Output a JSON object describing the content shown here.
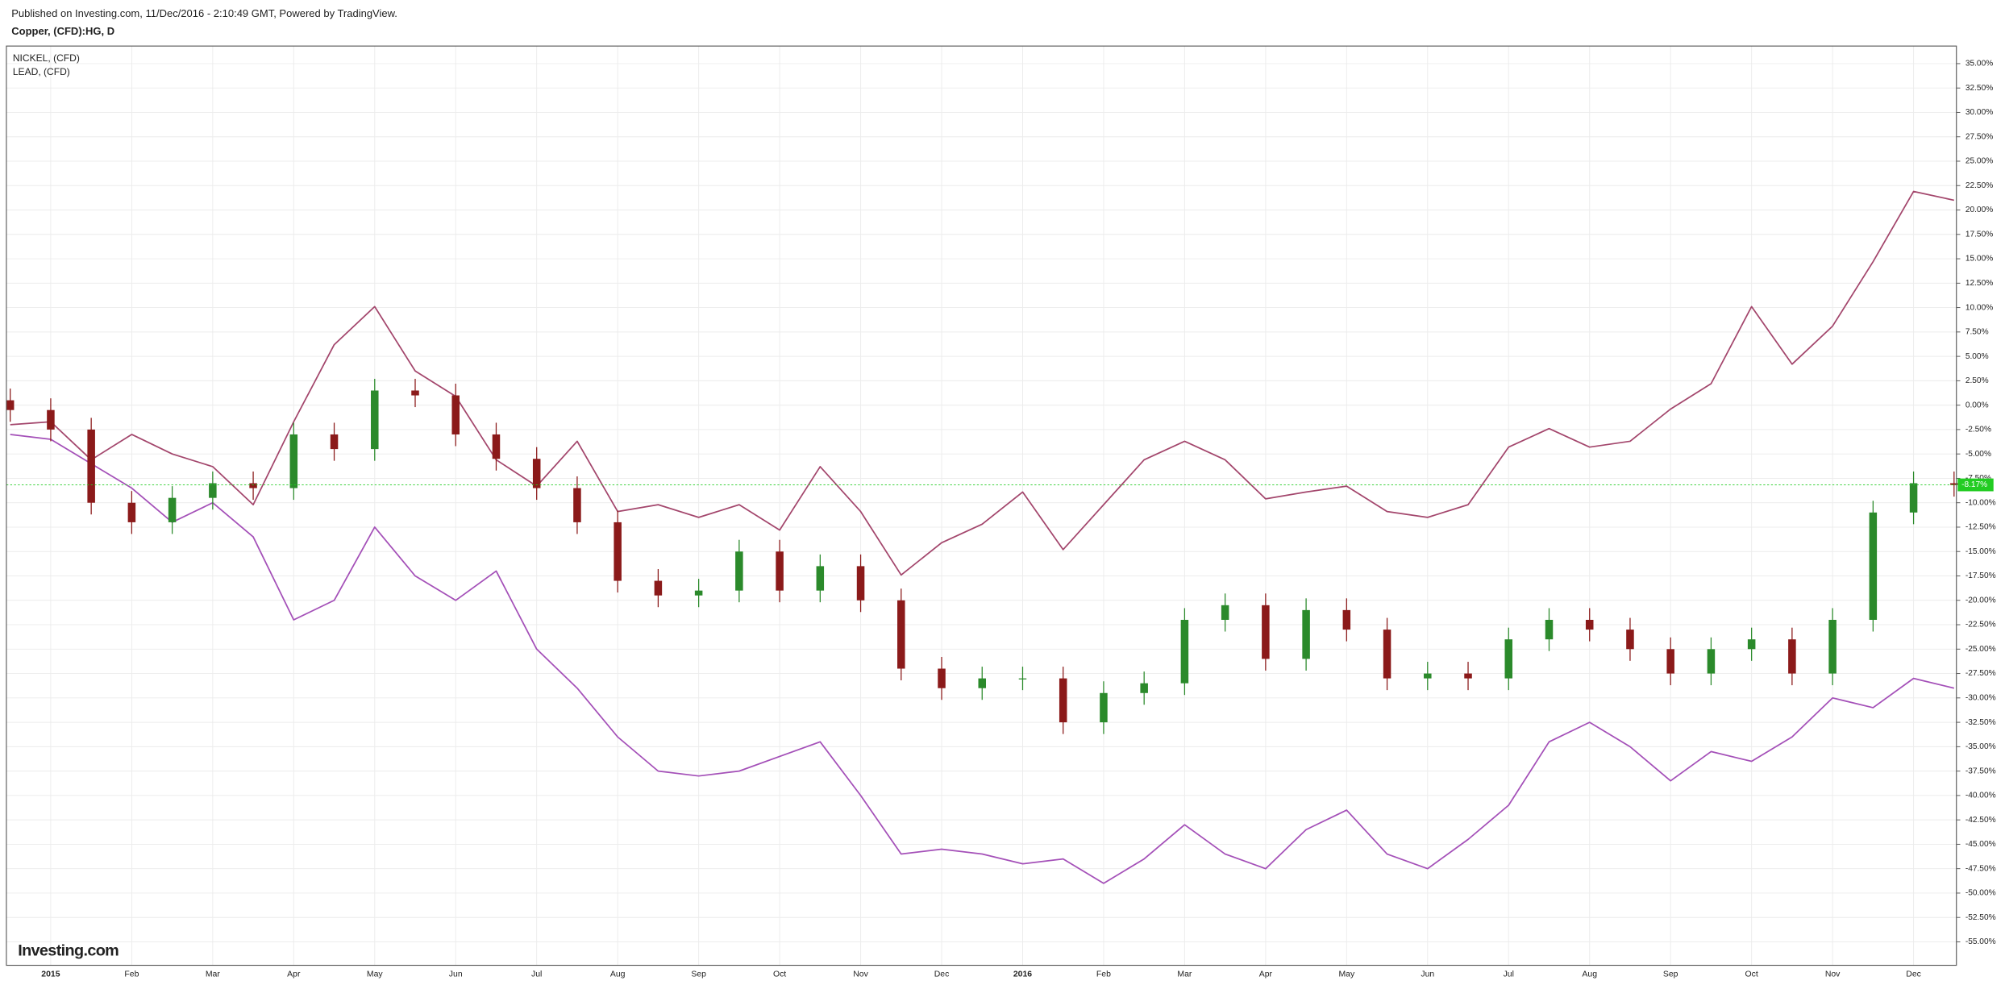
{
  "chart_data": {
    "type": "candlestick",
    "header": "Published on Investing.com, 11/Dec/2016 - 2:10:49 GMT, Powered by TradingView.",
    "title": "Copper, (CFD):HG, D",
    "watermark": "Investing.com",
    "categories": [
      null,
      "2015",
      null,
      "Feb",
      null,
      "Mar",
      null,
      "Apr",
      null,
      "May",
      null,
      "Jun",
      null,
      "Jul",
      null,
      "Aug",
      null,
      "Sep",
      null,
      "Oct",
      null,
      "Nov",
      null,
      "Dec",
      null,
      "2016",
      null,
      "Feb",
      null,
      "Mar",
      null,
      "Apr",
      null,
      "May",
      null,
      "Jun",
      null,
      "Jul",
      null,
      "Aug",
      null,
      "Sep",
      null,
      "Oct",
      null,
      "Nov",
      null,
      "Dec",
      null
    ],
    "open": [
      0.5,
      -0.5,
      -2.5,
      -10,
      -12,
      -9.5,
      -8,
      -8.5,
      -3,
      -4.5,
      1.5,
      1,
      -3,
      -5.5,
      -8.5,
      -12,
      -18,
      -19.5,
      -19,
      -15,
      -19,
      -16.5,
      -20,
      -27,
      -29,
      -28,
      -28,
      -32.5,
      -29.5,
      -28.5,
      -22,
      -20.5,
      -26,
      -21,
      -23,
      -28,
      -27.5,
      -28,
      -24,
      -22,
      -23,
      -25,
      -27.5,
      -25,
      -24,
      -27.5,
      -22,
      -11,
      -8
    ],
    "high": [
      1.7,
      0.7,
      -1.3,
      -8.8,
      -8.3,
      -6.8,
      -6.8,
      -1.8,
      -1.8,
      2.7,
      2.7,
      2.2,
      -1.8,
      -4.3,
      -7.3,
      -10.8,
      -16.8,
      -17.8,
      -13.8,
      -13.8,
      -15.3,
      -15.3,
      -18.8,
      -25.8,
      -26.8,
      -26.8,
      -26.8,
      -28.3,
      -27.3,
      -20.8,
      -19.3,
      -19.3,
      -19.8,
      -19.8,
      -21.8,
      -26.3,
      -26.3,
      -22.8,
      -20.8,
      -20.8,
      -21.8,
      -23.8,
      -23.8,
      -22.8,
      -22.8,
      -20.8,
      -9.8,
      -6.8,
      -6.8
    ],
    "low": [
      -1.7,
      -3.7,
      -11.2,
      -13.2,
      -13.2,
      -10.7,
      -9.7,
      -9.7,
      -5.7,
      -5.7,
      -0.2,
      -4.2,
      -6.7,
      -9.7,
      -13.2,
      -19.2,
      -20.7,
      -20.7,
      -20.2,
      -20.2,
      -20.2,
      -21.2,
      -28.2,
      -30.2,
      -30.2,
      -29.2,
      -33.7,
      -33.7,
      -30.7,
      -29.7,
      -23.2,
      -27.2,
      -27.2,
      -24.2,
      -29.2,
      -29.2,
      -29.2,
      -29.2,
      -25.2,
      -24.2,
      -26.2,
      -28.7,
      -28.7,
      -26.2,
      -28.7,
      -28.7,
      -23.2,
      -12.2,
      -9.37
    ],
    "close": [
      -0.5,
      -2.5,
      -10,
      -12,
      -9.5,
      -8,
      -8.5,
      -3,
      -4.5,
      1.5,
      1,
      -3,
      -5.5,
      -8.5,
      -12,
      -18,
      -19.5,
      -19,
      -15,
      -19,
      -16.5,
      -20,
      -27,
      -29,
      -28,
      -28,
      -32.5,
      -29.5,
      -28.5,
      -22,
      -20.5,
      -26,
      -21,
      -23,
      -28,
      -27.5,
      -28,
      -24,
      -22,
      -23,
      -25,
      -27.5,
      -25,
      -24,
      -27.5,
      -22,
      -11,
      -8,
      -8.17
    ],
    "up_color": "#2b8a2b",
    "down_color": "#8b1a1a",
    "overlays": [
      {
        "name": "NICKEL,  (CFD)",
        "color": "#a3466c",
        "values": [
          -2,
          -1.7,
          -5.6,
          -3,
          -5,
          -6.3,
          -10.2,
          -1.7,
          6.2,
          10.1,
          3.5,
          0.9,
          -5.6,
          -8.3,
          -3.7,
          -10.9,
          -10.2,
          -11.5,
          -10.2,
          -12.8,
          -6.3,
          -10.9,
          -17.4,
          -14.1,
          -12.2,
          -8.9,
          -14.8,
          -10.2,
          -5.6,
          -3.7,
          -5.6,
          -9.6,
          -8.9,
          -8.3,
          -10.9,
          -11.5,
          -10.2,
          -4.3,
          -2.4,
          -4.3,
          -3.7,
          -0.4,
          2.2,
          10.1,
          4.2,
          8.1,
          14.7,
          21.9,
          21
        ]
      },
      {
        "name": "LEAD,  (CFD)",
        "color": "#a450b8",
        "values": [
          -3,
          -3.5,
          -6,
          -8.5,
          -12,
          -10,
          -13.5,
          -22,
          -20,
          -12.5,
          -17.5,
          -20,
          -17,
          -25,
          -29,
          -34,
          -37.5,
          -38,
          -37.5,
          -36,
          -34.5,
          -40,
          -46,
          -45.5,
          -46,
          -47,
          -46.5,
          -49,
          -46.5,
          -43,
          -46,
          -47.5,
          -43.5,
          -41.5,
          -46,
          -47.5,
          -44.5,
          -41,
          -34.5,
          -32.5,
          -35,
          -38.5,
          -35.5,
          -36.5,
          -34,
          -30,
          -31,
          -28,
          -29
        ]
      }
    ],
    "last_value": -8.17,
    "last_value_label": "-8.17%",
    "last_color": "#22cc22",
    "ylim": [
      -57.4,
      36.8
    ],
    "yticks": [
      {
        "value": 35,
        "label": "35.00%"
      },
      {
        "value": 32.5,
        "label": "32.50%"
      },
      {
        "value": 30,
        "label": "30.00%"
      },
      {
        "value": 27.5,
        "label": "27.50%"
      },
      {
        "value": 25,
        "label": "25.00%"
      },
      {
        "value": 22.5,
        "label": "22.50%"
      },
      {
        "value": 20,
        "label": "20.00%"
      },
      {
        "value": 17.5,
        "label": "17.50%"
      },
      {
        "value": 15,
        "label": "15.00%"
      },
      {
        "value": 12.5,
        "label": "12.50%"
      },
      {
        "value": 10,
        "label": "10.00%"
      },
      {
        "value": 7.5,
        "label": "7.50%"
      },
      {
        "value": 5,
        "label": "5.00%"
      },
      {
        "value": 2.5,
        "label": "2.50%"
      },
      {
        "value": 0,
        "label": "0.00%"
      },
      {
        "value": -2.5,
        "label": "-2.50%"
      },
      {
        "value": -5,
        "label": "-5.00%"
      },
      {
        "value": -7.5,
        "label": "-7.50%"
      },
      {
        "value": -10,
        "label": "-10.00%"
      },
      {
        "value": -12.5,
        "label": "-12.50%"
      },
      {
        "value": -15,
        "label": "-15.00%"
      },
      {
        "value": -17.5,
        "label": "-17.50%"
      },
      {
        "value": -20,
        "label": "-20.00%"
      },
      {
        "value": -22.5,
        "label": "-22.50%"
      },
      {
        "value": -25,
        "label": "-25.00%"
      },
      {
        "value": -27.5,
        "label": "-27.50%"
      },
      {
        "value": -30,
        "label": "-30.00%"
      },
      {
        "value": -32.5,
        "label": "-32.50%"
      },
      {
        "value": -35,
        "label": "-35.00%"
      },
      {
        "value": -37.5,
        "label": "-37.50%"
      },
      {
        "value": -40,
        "label": "-40.00%"
      },
      {
        "value": -42.5,
        "label": "-42.50%"
      },
      {
        "value": -45,
        "label": "-45.00%"
      },
      {
        "value": -47.5,
        "label": "-47.50%"
      },
      {
        "value": -50,
        "label": "-50.00%"
      },
      {
        "value": -52.5,
        "label": "-52.50%"
      },
      {
        "value": -55,
        "label": "-55.00%"
      }
    ],
    "grid": true
  }
}
